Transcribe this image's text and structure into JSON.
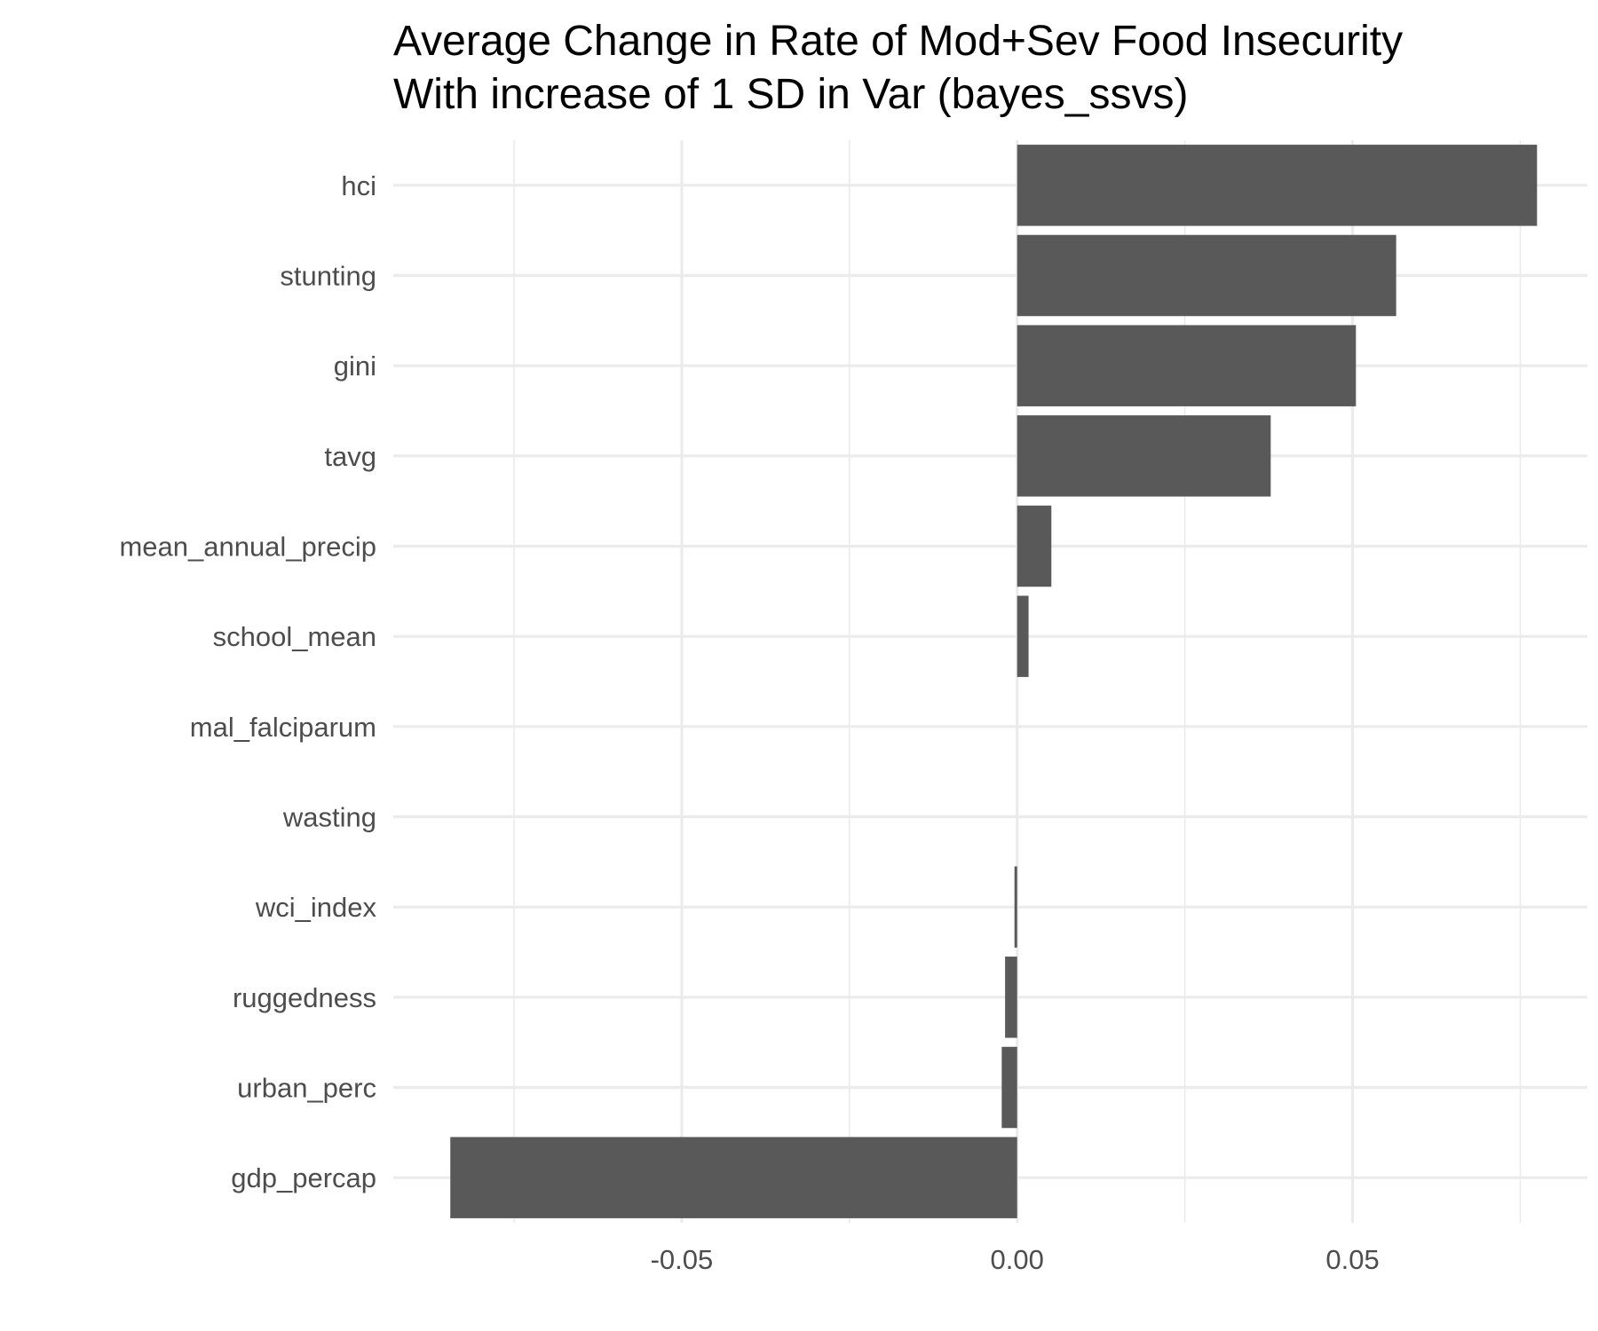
{
  "chart_data": {
    "type": "bar",
    "orientation": "horizontal",
    "title": [
      "Average Change in Rate of Mod+Sev Food Insecurity",
      "With increase of 1 SD in Var (bayes_ssvs)"
    ],
    "xlabel": "",
    "ylabel": "",
    "categories": [
      "hci",
      "stunting",
      "gini",
      "tavg",
      "mean_annual_precip",
      "school_mean",
      "mal_falciparum",
      "wasting",
      "wci_index",
      "ruggedness",
      "urban_perc",
      "gdp_percap"
    ],
    "values": [
      0.0775,
      0.0565,
      0.0505,
      0.0378,
      0.0051,
      0.0017,
      0,
      0,
      -0.0004,
      -0.0018,
      -0.0023,
      -0.0845
    ],
    "xlim": [
      -0.093,
      0.085
    ],
    "x_ticks": [
      -0.05,
      0.0,
      0.05
    ],
    "x_tick_labels": [
      "-0.05",
      "0.00",
      "0.05"
    ],
    "x_minor_ticks": [
      -0.075,
      -0.025,
      0.025,
      0.075
    ],
    "bar_color": "#595959",
    "grid_color": "#ebebeb",
    "grid": true,
    "legend": "none"
  }
}
